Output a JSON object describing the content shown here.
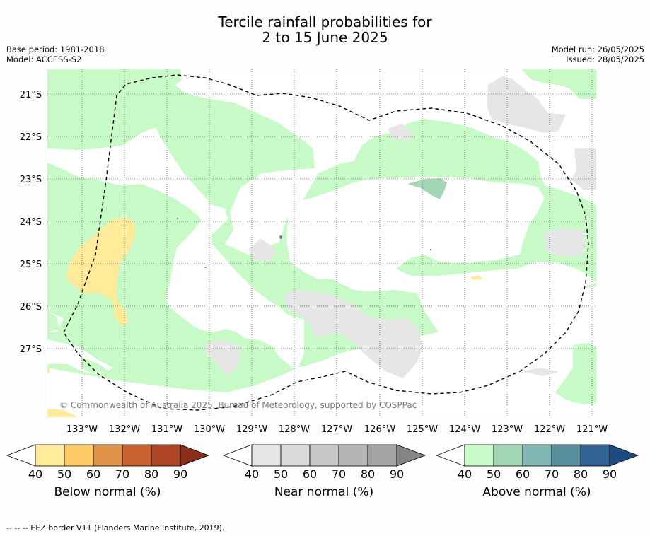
{
  "title_line1": "Tercile rainfall probabilities for",
  "title_line2": "2 to 15 June 2025",
  "base_period": "Base period: 1981-2018",
  "model": "Model: ACCESS-S2",
  "model_run": "Model run: 26/05/2025",
  "issued": "Issued: 28/05/2025",
  "copyright": "© Commonwealth of Australia 2025, Bureau of Meteorology, supported by COSPPac",
  "lat_labels": [
    "21°S",
    "22°S",
    "23°S",
    "24°S",
    "25°S",
    "26°S",
    "27°S"
  ],
  "lon_labels": [
    "133°W",
    "132°W",
    "131°W",
    "130°W",
    "129°W",
    "128°W",
    "127°W",
    "126°W",
    "125°W",
    "124°W",
    "123°W",
    "122°W",
    "121°W"
  ],
  "colorbars": [
    {
      "title": "Below normal (%)",
      "ticks": [
        "40",
        "50",
        "60",
        "70",
        "80",
        "90"
      ],
      "colors": [
        "#ffffff",
        "#ffeb99",
        "#fdcb66",
        "#e0934a",
        "#cb6232",
        "#ad4526",
        "#8b2e1c"
      ]
    },
    {
      "title": "Near normal (%)",
      "ticks": [
        "40",
        "50",
        "60",
        "70",
        "80",
        "90"
      ],
      "colors": [
        "#ffffff",
        "#e6e6e6",
        "#d9d9d9",
        "#c8c8c8",
        "#b5b5b5",
        "#a3a3a3",
        "#858585"
      ]
    },
    {
      "title": "Above normal (%)",
      "ticks": [
        "40",
        "50",
        "60",
        "70",
        "80",
        "90"
      ],
      "colors": [
        "#ffffff",
        "#c8fac8",
        "#a3d6b4",
        "#82b8b4",
        "#5a8fa0",
        "#326496",
        "#1e4b7d"
      ]
    }
  ],
  "footer": "--  --  -- EEZ border V11 (Flanders Marine Institute, 2019)."
}
